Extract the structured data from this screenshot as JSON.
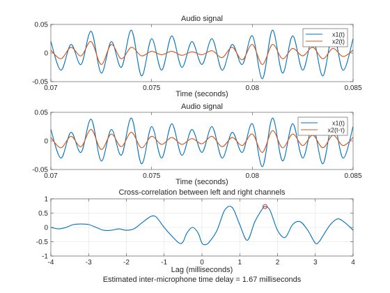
{
  "figure": {
    "background": "#ffffff",
    "axis_color": "#262626",
    "grid_color": "#dfdfdf"
  },
  "chart_data": [
    {
      "type": "line",
      "title": "Audio signal",
      "xlabel": "Time (seconds)",
      "ylabel": "",
      "xlim": [
        0.07,
        0.085
      ],
      "ylim": [
        -0.05,
        0.05
      ],
      "xticks": [
        0.07,
        0.075,
        0.08,
        0.085
      ],
      "xtick_labels": [
        "0.07",
        "0.075",
        "0.08",
        "0.085"
      ],
      "yticks": [
        0.05,
        0,
        -0.05
      ],
      "ytick_labels": [
        "0.05",
        "0",
        "-0.05"
      ],
      "grid": false,
      "legend": "top-right",
      "series": [
        {
          "name": "x1(t)",
          "color": "#0072bd",
          "x": [
            0.07,
            0.0705,
            0.071,
            0.0715,
            0.072,
            0.0725,
            0.073,
            0.0735,
            0.074,
            0.0745,
            0.075,
            0.0755,
            0.076,
            0.0765,
            0.077,
            0.0775,
            0.078,
            0.0785,
            0.079,
            0.0795,
            0.08,
            0.0805,
            0.081,
            0.0815,
            0.082,
            0.0825,
            0.083,
            0.0835,
            0.084,
            0.0845,
            0.085
          ],
          "y": [
            0.02,
            -0.03,
            0.015,
            -0.02,
            0.038,
            -0.035,
            0.02,
            -0.025,
            0.04,
            -0.04,
            0.025,
            -0.03,
            0.03,
            -0.025,
            0.02,
            -0.02,
            0.025,
            -0.03,
            0.015,
            -0.02,
            0.03,
            -0.045,
            0.04,
            -0.035,
            0.03,
            -0.03,
            0.025,
            -0.04,
            0.035,
            -0.03,
            0.025
          ]
        },
        {
          "name": "x2(t)",
          "color": "#d95319",
          "x": [
            0.07,
            0.0705,
            0.071,
            0.0715,
            0.072,
            0.0725,
            0.073,
            0.0735,
            0.074,
            0.0745,
            0.075,
            0.0755,
            0.076,
            0.0765,
            0.077,
            0.0775,
            0.078,
            0.0785,
            0.079,
            0.0795,
            0.08,
            0.0805,
            0.081,
            0.0815,
            0.082,
            0.0825,
            0.083,
            0.0835,
            0.084,
            0.0845,
            0.085
          ],
          "y": [
            0.005,
            -0.01,
            0.01,
            -0.005,
            0.02,
            -0.02,
            0.015,
            -0.01,
            0.01,
            -0.005,
            0.003,
            -0.003,
            0.003,
            -0.004,
            0.002,
            -0.003,
            0.004,
            -0.008,
            0.01,
            -0.012,
            0.015,
            -0.02,
            0.015,
            -0.01,
            0.008,
            -0.005,
            0.01,
            -0.01,
            0.008,
            -0.006,
            0.005
          ]
        }
      ]
    },
    {
      "type": "line",
      "title": "Audio signal",
      "xlabel": "Time (seconds)",
      "ylabel": "",
      "xlim": [
        0.07,
        0.085
      ],
      "ylim": [
        -0.05,
        0.05
      ],
      "xticks": [
        0.07,
        0.075,
        0.08,
        0.085
      ],
      "xtick_labels": [
        "0.07",
        "0.075",
        "0.08",
        "0.085"
      ],
      "yticks": [
        0.05,
        0,
        -0.05
      ],
      "ytick_labels": [
        "0.05",
        "0",
        "-0.05"
      ],
      "grid": false,
      "legend": "top-right",
      "series": [
        {
          "name": "x1(t)",
          "color": "#0072bd",
          "x": [
            0.07,
            0.0705,
            0.071,
            0.0715,
            0.072,
            0.0725,
            0.073,
            0.0735,
            0.074,
            0.0745,
            0.075,
            0.0755,
            0.076,
            0.0765,
            0.077,
            0.0775,
            0.078,
            0.0785,
            0.079,
            0.0795,
            0.08,
            0.0805,
            0.081,
            0.0815,
            0.082,
            0.0825,
            0.083,
            0.0835,
            0.084,
            0.0845,
            0.085
          ],
          "y": [
            0.02,
            -0.03,
            0.015,
            -0.02,
            0.038,
            -0.035,
            0.02,
            -0.025,
            0.04,
            -0.04,
            0.025,
            -0.03,
            0.03,
            -0.025,
            0.02,
            -0.02,
            0.025,
            -0.03,
            0.015,
            -0.02,
            0.03,
            -0.045,
            0.04,
            -0.035,
            0.03,
            -0.03,
            0.025,
            -0.04,
            0.035,
            -0.03,
            0.025
          ]
        },
        {
          "name": "x2(t-τ)",
          "color": "#d95319",
          "x": [
            0.07,
            0.0705,
            0.071,
            0.0715,
            0.072,
            0.0725,
            0.073,
            0.0735,
            0.074,
            0.0745,
            0.075,
            0.0755,
            0.076,
            0.0765,
            0.077,
            0.0775,
            0.078,
            0.0785,
            0.079,
            0.0795,
            0.08,
            0.0805,
            0.081,
            0.0815,
            0.082,
            0.0825,
            0.083,
            0.0835,
            0.084,
            0.0845,
            0.085
          ],
          "y": [
            0.006,
            -0.012,
            0.008,
            -0.01,
            0.02,
            -0.015,
            0.012,
            -0.01,
            0.015,
            -0.012,
            0.008,
            -0.006,
            0.006,
            -0.006,
            0.004,
            -0.005,
            0.008,
            -0.01,
            0.006,
            -0.008,
            0.012,
            -0.02,
            0.018,
            -0.012,
            0.012,
            -0.008,
            0.01,
            -0.012,
            0.01,
            -0.008,
            0.006
          ]
        }
      ]
    },
    {
      "type": "line",
      "title": "Cross-correlation between left and right channels",
      "xlabel": "Lag (milliseconds)",
      "ylabel": "",
      "xlim": [
        -4,
        4
      ],
      "ylim": [
        -1,
        1
      ],
      "xticks": [
        -4,
        -3,
        -2,
        -1,
        0,
        1,
        2,
        3,
        4
      ],
      "xtick_labels": [
        "-4",
        "-3",
        "-2",
        "-1",
        "0",
        "1",
        "2",
        "3",
        "4"
      ],
      "yticks": [
        1,
        0.5,
        0,
        -0.5,
        -1
      ],
      "ytick_labels": [
        "1",
        "0.5",
        "0",
        "-0.5",
        "-1"
      ],
      "grid": true,
      "legend": "none",
      "annotation": "Estimated inter-microphone time delay = 1.67 milliseconds",
      "peak": {
        "x": 1.67,
        "y": 0.73,
        "color": "#d62728"
      },
      "series": [
        {
          "name": "",
          "color": "#0072bd",
          "x": [
            -4,
            -3.8,
            -3.6,
            -3.4,
            -3.2,
            -3.0,
            -2.8,
            -2.6,
            -2.4,
            -2.2,
            -2.0,
            -1.8,
            -1.6,
            -1.4,
            -1.3,
            -1.2,
            -1.0,
            -0.8,
            -0.6,
            -0.5,
            -0.4,
            -0.25,
            -0.1,
            0.0,
            0.1,
            0.2,
            0.4,
            0.6,
            0.8,
            1.0,
            1.2,
            1.4,
            1.6,
            1.67,
            1.8,
            2.0,
            2.2,
            2.4,
            2.6,
            2.8,
            3.0,
            3.1,
            3.2,
            3.4,
            3.6,
            3.8,
            4.0
          ],
          "y": [
            0.0,
            -0.05,
            0.0,
            0.1,
            0.12,
            0.1,
            0.0,
            -0.1,
            -0.1,
            -0.05,
            -0.1,
            -0.05,
            0.15,
            0.35,
            0.4,
            0.35,
            0.0,
            -0.3,
            -0.55,
            -0.5,
            -0.2,
            0.0,
            -0.2,
            -0.55,
            -0.6,
            -0.5,
            -0.1,
            0.6,
            0.7,
            0.1,
            -0.45,
            0.2,
            0.65,
            0.73,
            0.6,
            -0.1,
            -0.35,
            0.1,
            0.2,
            -0.1,
            -0.55,
            -0.5,
            -0.3,
            0.1,
            0.3,
            0.15,
            -0.1
          ]
        }
      ]
    }
  ]
}
